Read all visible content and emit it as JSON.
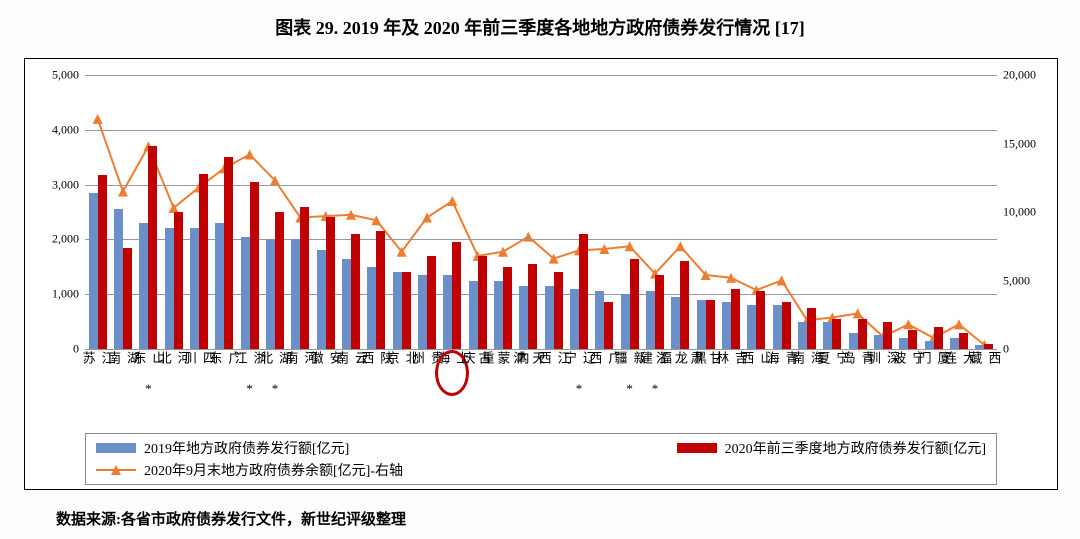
{
  "title_text": "图表 29. 2019 年及 2020 年前三季度各地地方政府债券发行情况 [17]",
  "title_fontsize": 18,
  "source_text": "数据来源:各省市政府债券发行文件，新世纪评级整理",
  "chart": {
    "type": "bar+line",
    "background_color": "#ffffff",
    "grid_color": "#999999",
    "text_color": "#000000",
    "axis_fontsize": 12,
    "category_fontsize": 13,
    "left_axis": {
      "min": 0,
      "max": 5000,
      "step": 1000
    },
    "right_axis": {
      "min": 0,
      "max": 20000,
      "step": 5000
    },
    "categories": [
      "江苏",
      "湖南",
      "山东",
      "河北",
      "四川",
      "广东",
      "浙江",
      "湖北",
      "河南",
      "安徽",
      "云南",
      "陕西",
      "北京",
      "贵州",
      "上海",
      "重庆",
      "内蒙古",
      "天津",
      "江西",
      "辽宁",
      "广西",
      "新疆",
      "福建",
      "黑龙江",
      "甘肃",
      "吉林",
      "山西",
      "青海",
      "海南",
      "宁夏",
      "青岛",
      "深圳",
      "宁波",
      "厦门",
      "大连",
      "西藏"
    ],
    "star_marks": [
      "山东",
      "浙江",
      "湖北",
      "辽宁",
      "新疆",
      "福建"
    ],
    "highlight_circle": "上海",
    "series": {
      "bars2019": {
        "label": "2019年地方政府债券发行额[亿元]",
        "color": "#6a8fc9",
        "values": [
          2850,
          2550,
          2300,
          2200,
          2200,
          2300,
          2050,
          2000,
          2000,
          1800,
          1650,
          1500,
          1400,
          1350,
          1350,
          1250,
          1250,
          1150,
          1150,
          1100,
          1050,
          1000,
          1050,
          950,
          900,
          850,
          800,
          800,
          500,
          500,
          300,
          250,
          200,
          150,
          200,
          80
        ]
      },
      "bars2020": {
        "label": "2020年前三季度地方政府债券发行额[亿元]",
        "color": "#c00000",
        "values": [
          3180,
          1850,
          3700,
          2500,
          3200,
          3500,
          3050,
          2500,
          2600,
          2400,
          2100,
          2150,
          1400,
          1700,
          1950,
          1700,
          1500,
          1550,
          1400,
          2100,
          850,
          1650,
          1350,
          1600,
          900,
          1100,
          1050,
          850,
          750,
          550,
          550,
          500,
          350,
          400,
          300,
          100
        ]
      },
      "line_balance": {
        "label": "2020年9月末地方政府债券余额[亿元]-右轴",
        "color": "#ed7d31",
        "marker": "triangle",
        "line_width": 2,
        "values": [
          16800,
          11500,
          14800,
          10300,
          11800,
          13200,
          14200,
          12300,
          9600,
          9700,
          9800,
          9400,
          7100,
          9600,
          10800,
          6800,
          7100,
          8200,
          6600,
          7200,
          7300,
          7500,
          5500,
          7500,
          5400,
          5200,
          4300,
          5000,
          2100,
          2300,
          2600,
          900,
          1800,
          800,
          1800,
          300
        ]
      }
    },
    "legend": {
      "items": [
        {
          "key": "bars2019",
          "type": "swatch"
        },
        {
          "key": "bars2020",
          "type": "swatch"
        },
        {
          "key": "line_balance",
          "type": "line-triangle"
        }
      ]
    },
    "bar_group_width_ratio": 0.72
  }
}
